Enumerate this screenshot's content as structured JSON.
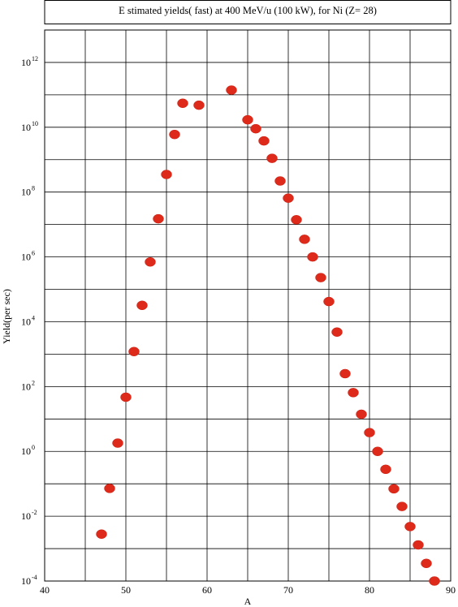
{
  "chart_data": {
    "type": "scatter",
    "title": "E stimated yields( fast) at 400 MeV/u (100 kW), for Ni (Z= 28)",
    "xlabel": "A",
    "ylabel": "Yield(per sec)",
    "xlim": [
      40,
      90
    ],
    "ylim": [
      0.0001,
      10000000000000
    ],
    "y_scale": "log",
    "x_ticks": [
      40,
      50,
      60,
      70,
      80,
      90
    ],
    "x_grid": [
      45,
      50,
      55,
      60,
      65,
      70,
      75,
      80,
      85
    ],
    "y_ticks": [
      {
        "base": "10",
        "exp": "-4",
        "value": 0.0001
      },
      {
        "base": "10",
        "exp": "-2",
        "value": 0.01
      },
      {
        "base": "10",
        "exp": "0",
        "value": 1
      },
      {
        "base": "10",
        "exp": "2",
        "value": 100
      },
      {
        "base": "10",
        "exp": "4",
        "value": 10000
      },
      {
        "base": "10",
        "exp": "6",
        "value": 1000000
      },
      {
        "base": "10",
        "exp": "8",
        "value": 100000000
      },
      {
        "base": "10",
        "exp": "10",
        "value": 10000000000
      },
      {
        "base": "10",
        "exp": "12",
        "value": 1000000000000
      }
    ],
    "grid": true,
    "marker_color": "#dd2a1b",
    "points": [
      {
        "x": 47,
        "y": 0.0028
      },
      {
        "x": 48,
        "y": 0.072
      },
      {
        "x": 49,
        "y": 1.8
      },
      {
        "x": 50,
        "y": 47
      },
      {
        "x": 51,
        "y": 1200
      },
      {
        "x": 52,
        "y": 32000
      },
      {
        "x": 53,
        "y": 700000
      },
      {
        "x": 54,
        "y": 15000000
      },
      {
        "x": 55,
        "y": 350000000
      },
      {
        "x": 56,
        "y": 6000000000
      },
      {
        "x": 57,
        "y": 55000000000
      },
      {
        "x": 59,
        "y": 48000000000
      },
      {
        "x": 63,
        "y": 140000000000
      },
      {
        "x": 65,
        "y": 17000000000
      },
      {
        "x": 66,
        "y": 9000000000
      },
      {
        "x": 67,
        "y": 3800000000
      },
      {
        "x": 68,
        "y": 1100000000
      },
      {
        "x": 69,
        "y": 220000000
      },
      {
        "x": 70,
        "y": 65000000
      },
      {
        "x": 71,
        "y": 14000000
      },
      {
        "x": 72,
        "y": 3500000
      },
      {
        "x": 73,
        "y": 1000000
      },
      {
        "x": 74,
        "y": 230000
      },
      {
        "x": 75,
        "y": 42000
      },
      {
        "x": 76,
        "y": 4800
      },
      {
        "x": 77,
        "y": 250
      },
      {
        "x": 78,
        "y": 65
      },
      {
        "x": 79,
        "y": 14
      },
      {
        "x": 80,
        "y": 3.8
      },
      {
        "x": 81,
        "y": 1.0
      },
      {
        "x": 82,
        "y": 0.28
      },
      {
        "x": 83,
        "y": 0.07
      },
      {
        "x": 84,
        "y": 0.02
      },
      {
        "x": 85,
        "y": 0.0048
      },
      {
        "x": 86,
        "y": 0.0013
      },
      {
        "x": 87,
        "y": 0.00035
      },
      {
        "x": 88,
        "y": 0.0001
      }
    ]
  }
}
